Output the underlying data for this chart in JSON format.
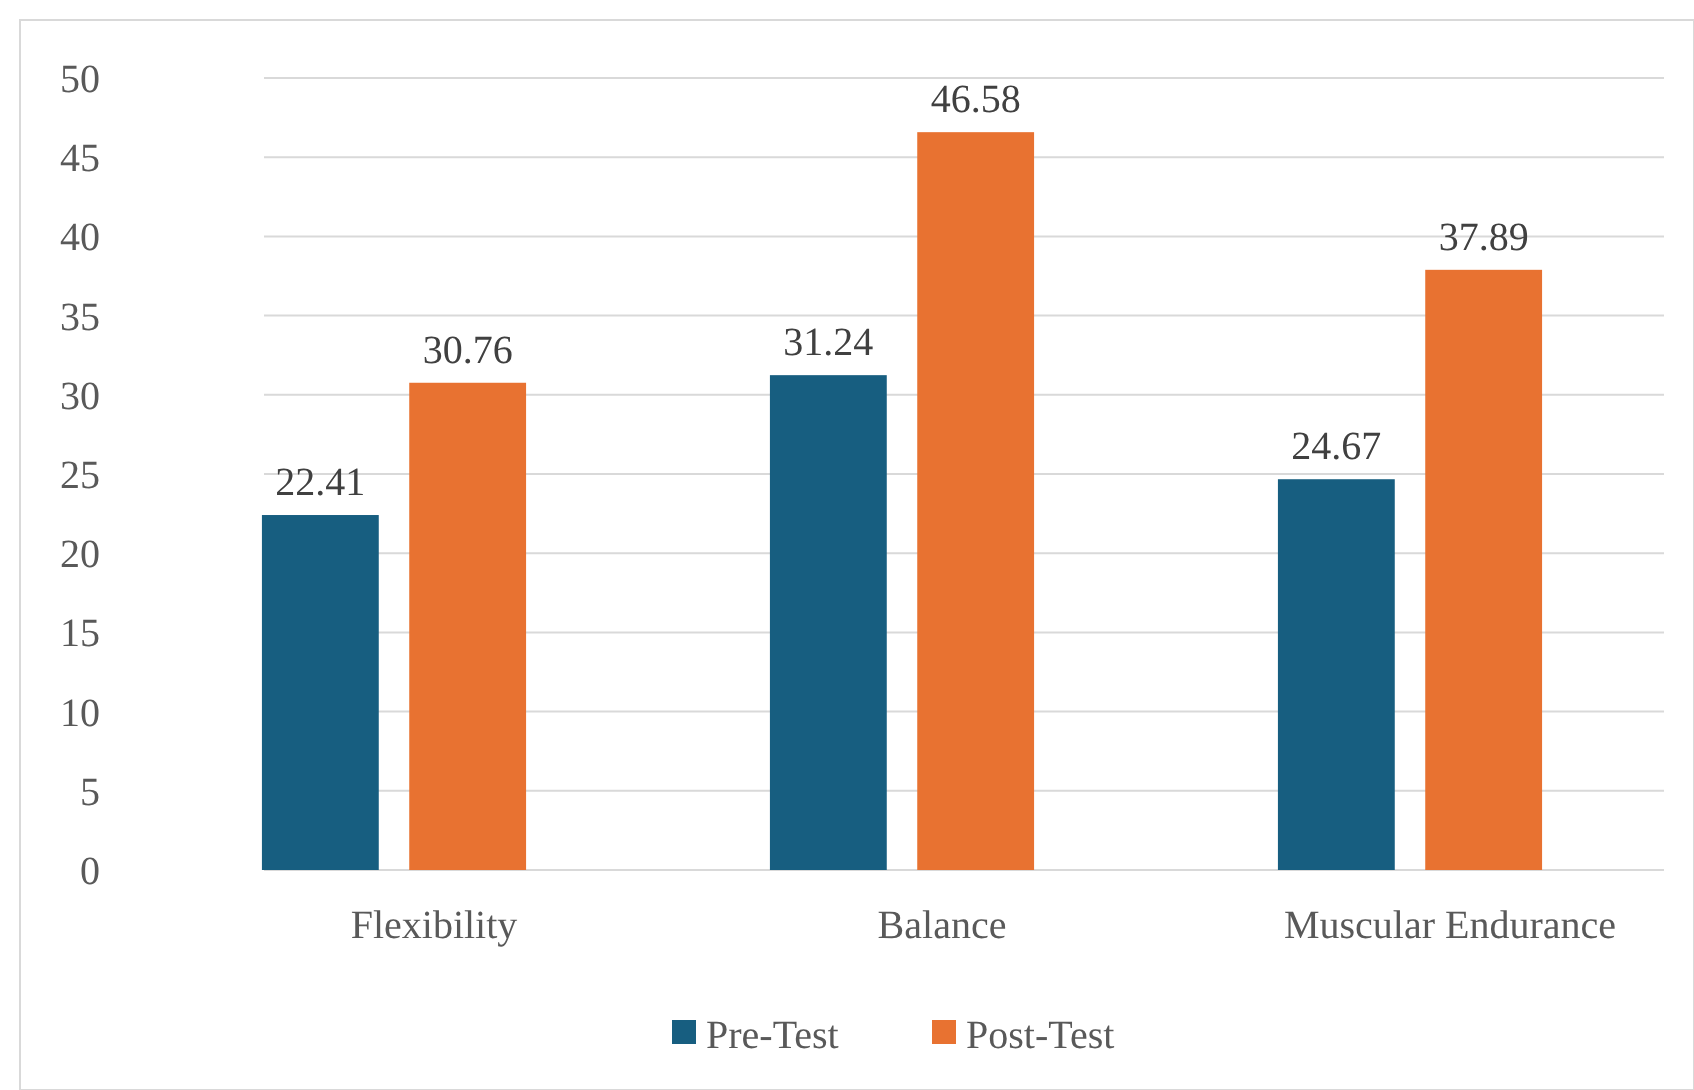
{
  "chart_data": {
    "type": "bar",
    "categories": [
      "Flexibility",
      "Balance",
      "Muscular Endurance"
    ],
    "series": [
      {
        "name": "Pre-Test",
        "color": "#175e80",
        "values": [
          22.41,
          31.24,
          24.67
        ]
      },
      {
        "name": "Post-Test",
        "color": "#e87231",
        "values": [
          30.76,
          46.58,
          37.89
        ]
      }
    ],
    "ylim": [
      0,
      50
    ],
    "yticks": [
      0,
      5,
      10,
      15,
      20,
      25,
      30,
      35,
      40,
      45,
      50
    ],
    "grid": "y",
    "legend": "bottom",
    "data_labels": true
  }
}
